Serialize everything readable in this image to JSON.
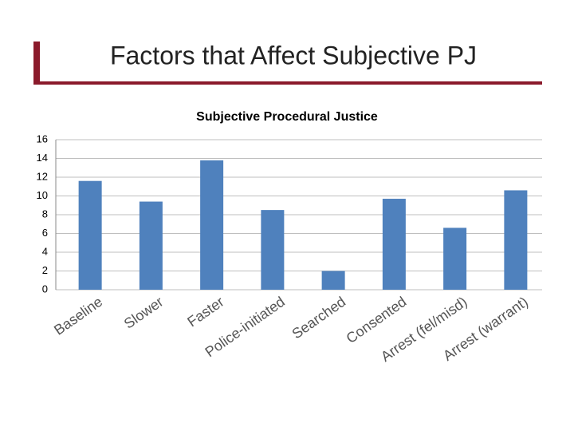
{
  "slide": {
    "title": "Factors that Affect Subjective PJ"
  },
  "chart_data": {
    "type": "bar",
    "title": "Subjective Procedural Justice",
    "categories": [
      "Baseline",
      "Slower",
      "Faster",
      "Police-initiated",
      "Searched",
      "Consented",
      "Arrest (fel/misd)",
      "Arrest (warrant)"
    ],
    "values": [
      11.6,
      9.4,
      13.8,
      8.5,
      2.0,
      9.7,
      6.6,
      10.6
    ],
    "color": "#4f81bd",
    "ylim": [
      0,
      16
    ],
    "yticks": [
      0,
      2,
      4,
      6,
      8,
      10,
      12,
      14,
      16
    ],
    "grid": true
  }
}
